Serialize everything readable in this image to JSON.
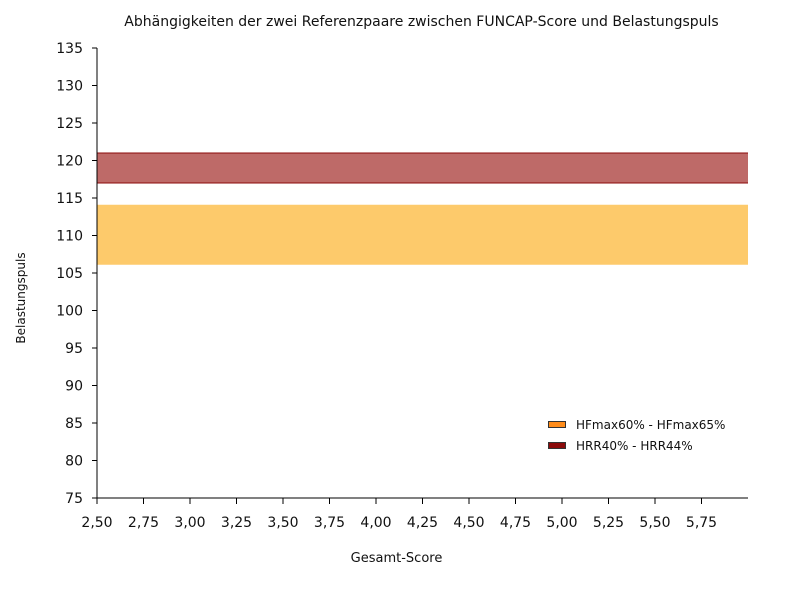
{
  "chart_data": {
    "type": "area",
    "title": "Abhängigkeiten der zwei Referenzpaare zwischen FUNCAP-Score und Belastungspuls",
    "xlabel": "Gesamt-Score",
    "ylabel": "Belastungspuls",
    "xlim": [
      2.5,
      6.0
    ],
    "ylim": [
      75,
      135
    ],
    "x_ticks": [
      "2,50",
      "2,75",
      "3,00",
      "3,25",
      "3,50",
      "3,75",
      "4,00",
      "4,25",
      "4,50",
      "4,75",
      "5,00",
      "5,25",
      "5,50",
      "5,75"
    ],
    "x_tick_values": [
      2.5,
      2.75,
      3.0,
      3.25,
      3.5,
      3.75,
      4.0,
      4.25,
      4.5,
      4.75,
      5.0,
      5.25,
      5.5,
      5.75
    ],
    "y_ticks": [
      "75",
      "80",
      "85",
      "90",
      "95",
      "100",
      "105",
      "110",
      "115",
      "120",
      "125",
      "130",
      "135"
    ],
    "y_tick_values": [
      75,
      80,
      85,
      90,
      95,
      100,
      105,
      110,
      115,
      120,
      125,
      130,
      135
    ],
    "grid": false,
    "legend_position": "lower-right",
    "series": [
      {
        "name": "HFmax60% - HFmax65%",
        "x": [
          2.5,
          6.0
        ],
        "lower": [
          106.1,
          106.1
        ],
        "upper": [
          114.1,
          114.1
        ],
        "color": "#fdca6b",
        "legend_color": "#ff8c1a"
      },
      {
        "name": "HRR40% - HRR44%",
        "x": [
          2.5,
          6.0
        ],
        "lower": [
          117.0,
          117.0
        ],
        "upper": [
          121.0,
          121.0
        ],
        "color": "#be6a68",
        "legend_color": "#8b0a0a"
      }
    ]
  }
}
